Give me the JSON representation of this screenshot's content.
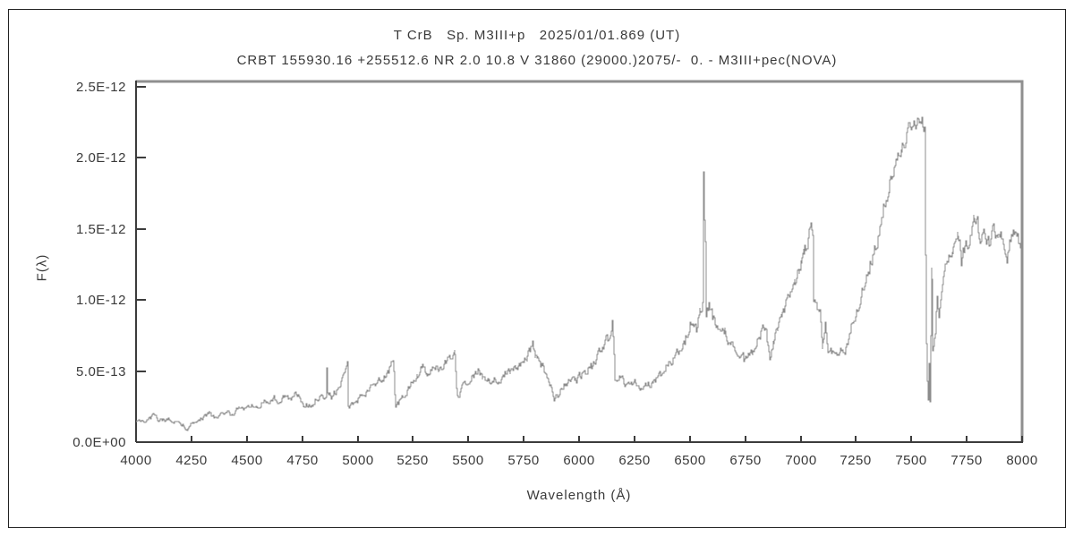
{
  "window": {
    "background": "#ffffff",
    "border_color": "#222222"
  },
  "titles": {
    "line1": "T CrB   Sp. M3III+p   2025/01/01.869 (UT)",
    "line2": "CRBT 155930.16 +255512.6 NR 2.0 10.8 V 31860 (29000.)2075/-  0. - M3III+pec(NOVA)"
  },
  "colors": {
    "spectrum_line": "#8c8c8c",
    "frame_shadow": "#8f8f8f",
    "axis": "#3c3c3c",
    "text": "#3a3a3a"
  },
  "chart_data": {
    "type": "line",
    "title": "T CrB   Sp. M3III+p   2025/01/01.869 (UT)",
    "subtitle": "CRBT 155930.16 +255512.6 NR 2.0 10.8 V 31860 (29000.)2075/-  0. - M3III+pec(NOVA)",
    "xlabel": "Wavelength (Å)",
    "ylabel": "F(λ)",
    "grid": false,
    "legend": false,
    "x_range": [
      4000,
      8000
    ],
    "y_range_e12": [
      0,
      2.5
    ],
    "x_ticks": [
      4000,
      4250,
      4500,
      4750,
      5000,
      5250,
      5500,
      5750,
      6000,
      6250,
      6500,
      6750,
      7000,
      7250,
      7500,
      7750,
      8000
    ],
    "y_ticks": [
      {
        "value_e12": 0.0,
        "label": "0.0E+00"
      },
      {
        "value_e12": 0.5,
        "label": "5.0E-13"
      },
      {
        "value_e12": 1.0,
        "label": "1.0E-12"
      },
      {
        "value_e12": 1.5,
        "label": "1.5E-12"
      },
      {
        "value_e12": 2.0,
        "label": "2.0E-12"
      },
      {
        "value_e12": 2.5,
        "label": "2.5E-12"
      }
    ],
    "noise": {
      "seed": 20250101,
      "base": 0.008,
      "scale": 0.03,
      "cap": 0.045,
      "persistence": 0.55,
      "step_angstrom": 4
    },
    "series": [
      {
        "name": "spectrum",
        "color": "#8c8c8c",
        "points_e12": [
          [
            4000,
            0.15
          ],
          [
            4030,
            0.15
          ],
          [
            4060,
            0.16
          ],
          [
            4085,
            0.2
          ],
          [
            4095,
            0.16
          ],
          [
            4120,
            0.16
          ],
          [
            4150,
            0.16
          ],
          [
            4180,
            0.15
          ],
          [
            4210,
            0.12
          ],
          [
            4225,
            0.09
          ],
          [
            4245,
            0.11
          ],
          [
            4270,
            0.15
          ],
          [
            4300,
            0.17
          ],
          [
            4330,
            0.21
          ],
          [
            4355,
            0.17
          ],
          [
            4380,
            0.19
          ],
          [
            4410,
            0.21
          ],
          [
            4440,
            0.19
          ],
          [
            4465,
            0.25
          ],
          [
            4490,
            0.23
          ],
          [
            4520,
            0.27
          ],
          [
            4545,
            0.24
          ],
          [
            4575,
            0.29
          ],
          [
            4600,
            0.27
          ],
          [
            4625,
            0.31
          ],
          [
            4650,
            0.29
          ],
          [
            4675,
            0.33
          ],
          [
            4700,
            0.31
          ],
          [
            4720,
            0.35
          ],
          [
            4740,
            0.33
          ],
          [
            4755,
            0.25
          ],
          [
            4770,
            0.27
          ],
          [
            4790,
            0.26
          ],
          [
            4810,
            0.29
          ],
          [
            4830,
            0.31
          ],
          [
            4848,
            0.31
          ],
          [
            4856,
            0.32
          ],
          [
            4861,
            0.53
          ],
          [
            4866,
            0.34
          ],
          [
            4880,
            0.32
          ],
          [
            4900,
            0.36
          ],
          [
            4915,
            0.4
          ],
          [
            4930,
            0.44
          ],
          [
            4945,
            0.5
          ],
          [
            4952,
            0.55
          ],
          [
            4958,
            0.24
          ],
          [
            4975,
            0.27
          ],
          [
            5000,
            0.3
          ],
          [
            5030,
            0.33
          ],
          [
            5055,
            0.37
          ],
          [
            5080,
            0.41
          ],
          [
            5105,
            0.44
          ],
          [
            5130,
            0.48
          ],
          [
            5150,
            0.53
          ],
          [
            5163,
            0.57
          ],
          [
            5170,
            0.25
          ],
          [
            5185,
            0.28
          ],
          [
            5215,
            0.34
          ],
          [
            5245,
            0.42
          ],
          [
            5270,
            0.46
          ],
          [
            5290,
            0.53
          ],
          [
            5315,
            0.47
          ],
          [
            5340,
            0.55
          ],
          [
            5365,
            0.5
          ],
          [
            5395,
            0.56
          ],
          [
            5420,
            0.6
          ],
          [
            5438,
            0.67
          ],
          [
            5450,
            0.34
          ],
          [
            5460,
            0.31
          ],
          [
            5475,
            0.4
          ],
          [
            5500,
            0.43
          ],
          [
            5525,
            0.47
          ],
          [
            5545,
            0.51
          ],
          [
            5565,
            0.45
          ],
          [
            5590,
            0.42
          ],
          [
            5615,
            0.45
          ],
          [
            5640,
            0.43
          ],
          [
            5665,
            0.47
          ],
          [
            5690,
            0.49
          ],
          [
            5715,
            0.52
          ],
          [
            5740,
            0.56
          ],
          [
            5765,
            0.6
          ],
          [
            5788,
            0.69
          ],
          [
            5800,
            0.62
          ],
          [
            5815,
            0.59
          ],
          [
            5835,
            0.53
          ],
          [
            5855,
            0.47
          ],
          [
            5872,
            0.4
          ],
          [
            5888,
            0.31
          ],
          [
            5905,
            0.34
          ],
          [
            5925,
            0.39
          ],
          [
            5945,
            0.43
          ],
          [
            5965,
            0.46
          ],
          [
            5985,
            0.43
          ],
          [
            6005,
            0.47
          ],
          [
            6030,
            0.5
          ],
          [
            6055,
            0.54
          ],
          [
            6080,
            0.6
          ],
          [
            6105,
            0.67
          ],
          [
            6130,
            0.74
          ],
          [
            6150,
            0.82
          ],
          [
            6160,
            0.44
          ],
          [
            6180,
            0.46
          ],
          [
            6205,
            0.42
          ],
          [
            6230,
            0.41
          ],
          [
            6255,
            0.43
          ],
          [
            6280,
            0.37
          ],
          [
            6305,
            0.4
          ],
          [
            6330,
            0.42
          ],
          [
            6360,
            0.46
          ],
          [
            6390,
            0.51
          ],
          [
            6420,
            0.58
          ],
          [
            6450,
            0.66
          ],
          [
            6475,
            0.72
          ],
          [
            6500,
            0.84
          ],
          [
            6515,
            0.87
          ],
          [
            6530,
            0.79
          ],
          [
            6545,
            0.92
          ],
          [
            6558,
            1.0
          ],
          [
            6563,
            1.91
          ],
          [
            6567,
            1.6
          ],
          [
            6572,
            0.95
          ],
          [
            6585,
            0.97
          ],
          [
            6600,
            0.89
          ],
          [
            6620,
            0.83
          ],
          [
            6640,
            0.77
          ],
          [
            6658,
            0.8
          ],
          [
            6680,
            0.69
          ],
          [
            6700,
            0.66
          ],
          [
            6720,
            0.63
          ],
          [
            6745,
            0.6
          ],
          [
            6765,
            0.62
          ],
          [
            6785,
            0.64
          ],
          [
            6805,
            0.7
          ],
          [
            6822,
            0.77
          ],
          [
            6838,
            0.82
          ],
          [
            6850,
            0.72
          ],
          [
            6862,
            0.59
          ],
          [
            6877,
            0.71
          ],
          [
            6895,
            0.81
          ],
          [
            6915,
            0.89
          ],
          [
            6935,
            0.96
          ],
          [
            6955,
            1.03
          ],
          [
            6975,
            1.13
          ],
          [
            6995,
            1.23
          ],
          [
            7015,
            1.33
          ],
          [
            7035,
            1.44
          ],
          [
            7048,
            1.5
          ],
          [
            7056,
            1.42
          ],
          [
            7060,
            0.94
          ],
          [
            7075,
            0.96
          ],
          [
            7088,
            0.9
          ],
          [
            7098,
            0.67
          ],
          [
            7112,
            0.84
          ],
          [
            7122,
            0.61
          ],
          [
            7140,
            0.63
          ],
          [
            7160,
            0.6
          ],
          [
            7180,
            0.65
          ],
          [
            7200,
            0.62
          ],
          [
            7218,
            0.72
          ],
          [
            7235,
            0.86
          ],
          [
            7255,
            0.96
          ],
          [
            7275,
            1.06
          ],
          [
            7295,
            1.16
          ],
          [
            7315,
            1.27
          ],
          [
            7335,
            1.39
          ],
          [
            7355,
            1.51
          ],
          [
            7375,
            1.63
          ],
          [
            7395,
            1.76
          ],
          [
            7415,
            1.9
          ],
          [
            7435,
            2.01
          ],
          [
            7455,
            2.09
          ],
          [
            7475,
            2.16
          ],
          [
            7495,
            2.22
          ],
          [
            7515,
            2.26
          ],
          [
            7535,
            2.29
          ],
          [
            7550,
            2.25
          ],
          [
            7560,
            2.21
          ],
          [
            7566,
            0.8
          ],
          [
            7571,
            0.42
          ],
          [
            7576,
            0.26
          ],
          [
            7581,
            0.56
          ],
          [
            7585,
            0.3
          ],
          [
            7591,
            1.18
          ],
          [
            7597,
            0.64
          ],
          [
            7606,
            0.71
          ],
          [
            7616,
            1.05
          ],
          [
            7626,
            0.9
          ],
          [
            7641,
            1.1
          ],
          [
            7656,
            1.21
          ],
          [
            7672,
            1.31
          ],
          [
            7690,
            1.36
          ],
          [
            7710,
            1.46
          ],
          [
            7726,
            1.31
          ],
          [
            7742,
            1.39
          ],
          [
            7762,
            1.43
          ],
          [
            7782,
            1.56
          ],
          [
            7796,
            1.62
          ],
          [
            7812,
            1.4
          ],
          [
            7830,
            1.46
          ],
          [
            7850,
            1.41
          ],
          [
            7870,
            1.49
          ],
          [
            7890,
            1.38
          ],
          [
            7912,
            1.43
          ],
          [
            7932,
            1.32
          ],
          [
            7952,
            1.46
          ],
          [
            7972,
            1.53
          ],
          [
            7986,
            1.4
          ],
          [
            8000,
            1.43
          ]
        ]
      }
    ]
  }
}
